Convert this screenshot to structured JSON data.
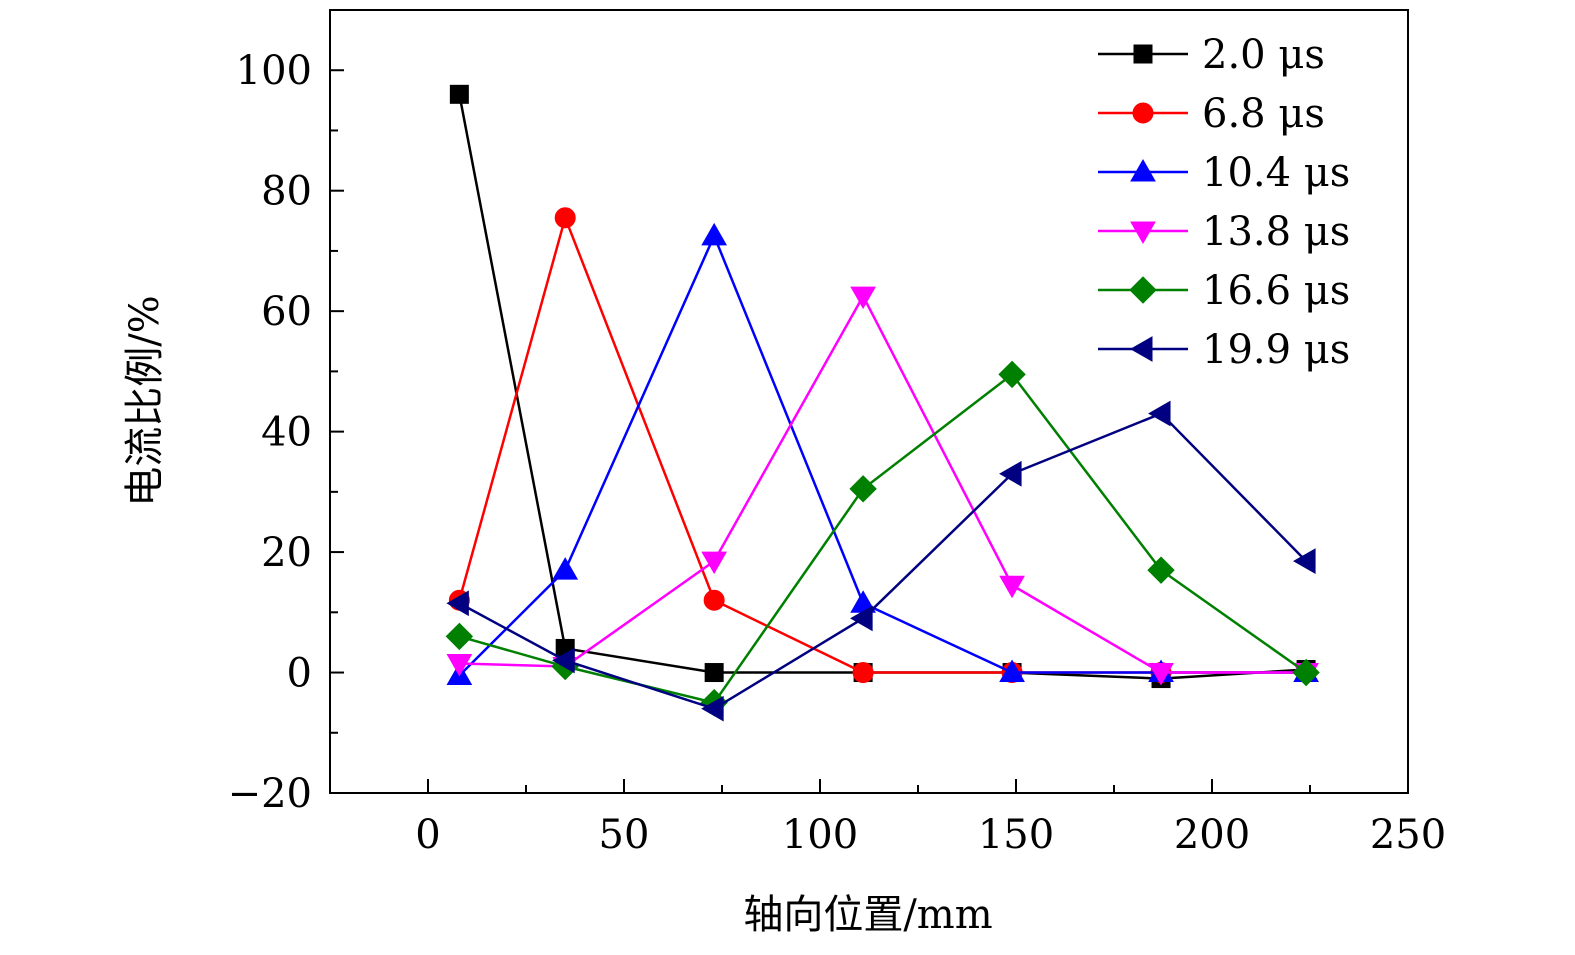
{
  "chart_data": {
    "type": "line",
    "title": "",
    "xlabel": "轴向位置/mm",
    "ylabel": "电流比例/%",
    "xlim": [
      -25,
      250
    ],
    "ylim": [
      -20,
      110
    ],
    "xticks": [
      0,
      50,
      100,
      150,
      200,
      250
    ],
    "xtick_labels": [
      "0",
      "50",
      "100",
      "150",
      "200",
      "250"
    ],
    "xminor": [
      25,
      75,
      125,
      175,
      225
    ],
    "yticks": [
      -20,
      0,
      20,
      40,
      60,
      80,
      100
    ],
    "ytick_labels": [
      "−20",
      "0",
      "20",
      "40",
      "60",
      "80",
      "100"
    ],
    "yminor": [
      -10,
      10,
      30,
      50,
      70,
      90
    ],
    "grid": false,
    "legend_position": "top-right",
    "x": [
      8,
      35,
      73,
      111,
      149,
      187,
      224
    ],
    "series": [
      {
        "name": "2.0 μs",
        "color": "#000000",
        "marker": "square",
        "values": [
          96,
          4,
          0,
          0,
          0,
          -1,
          0.5
        ]
      },
      {
        "name": "6.8 μs",
        "color": "#ff0000",
        "marker": "circle",
        "values": [
          12,
          75.5,
          12,
          0,
          0,
          0,
          0
        ]
      },
      {
        "name": "10.4 μs",
        "color": "#0000ff",
        "marker": "triangle-up",
        "values": [
          -0.5,
          17,
          72.5,
          11.5,
          0,
          0,
          0
        ]
      },
      {
        "name": "13.8 μs",
        "color": "#ff00ff",
        "marker": "triangle-down",
        "values": [
          1.5,
          1,
          18.5,
          62.5,
          14.5,
          0,
          0
        ]
      },
      {
        "name": "16.6 μs",
        "color": "#008000",
        "marker": "diamond",
        "values": [
          6,
          1,
          -5,
          30.5,
          49.5,
          17,
          0
        ]
      },
      {
        "name": "19.9 μs",
        "color": "#000080",
        "marker": "triangle-left",
        "values": [
          11.5,
          2,
          -6,
          9,
          33,
          43,
          18.5
        ]
      }
    ]
  }
}
